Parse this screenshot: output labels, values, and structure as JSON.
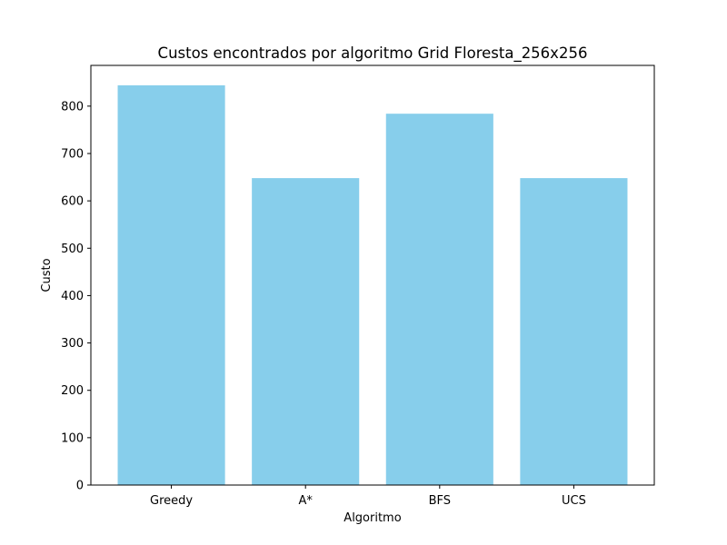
{
  "chart_data": {
    "type": "bar",
    "title": "Custos encontrados por algoritmo Grid Floresta_256x256",
    "xlabel": "Algoritmo",
    "ylabel": "Custo",
    "categories": [
      "Greedy",
      "A*",
      "BFS",
      "UCS"
    ],
    "values": [
      844,
      648,
      784,
      648
    ],
    "ylim": [
      0,
      886
    ],
    "yticks": [
      0,
      100,
      200,
      300,
      400,
      500,
      600,
      700,
      800
    ],
    "grid": false,
    "bar_color": "#87CEEB"
  }
}
